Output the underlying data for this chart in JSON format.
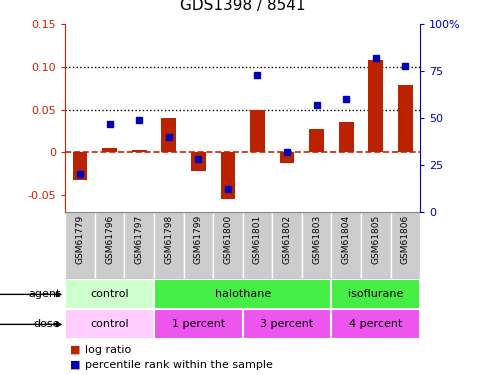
{
  "title": "GDS1398 / 8541",
  "samples": [
    "GSM61779",
    "GSM61796",
    "GSM61797",
    "GSM61798",
    "GSM61799",
    "GSM61800",
    "GSM61801",
    "GSM61802",
    "GSM61803",
    "GSM61804",
    "GSM61805",
    "GSM61806"
  ],
  "log_ratio": [
    -0.033,
    0.005,
    0.003,
    0.04,
    -0.022,
    -0.055,
    0.05,
    -0.013,
    0.027,
    0.035,
    0.108,
    0.079
  ],
  "pct_rank": [
    20,
    47,
    49,
    40,
    28,
    12,
    73,
    32,
    57,
    60,
    82,
    78
  ],
  "ylim_left": [
    -0.07,
    0.15
  ],
  "ylim_right": [
    0,
    100
  ],
  "yticks_left": [
    -0.05,
    0.0,
    0.05,
    0.1,
    0.15
  ],
  "ytick_labels_left": [
    "-0.05",
    "0",
    "0.05",
    "0.10",
    "0.15"
  ],
  "yticks_right": [
    0,
    25,
    50,
    75,
    100
  ],
  "ytick_labels_right": [
    "0",
    "25",
    "50",
    "75",
    "100%"
  ],
  "hlines": [
    0.1,
    0.05
  ],
  "bar_color": "#bb2200",
  "dot_color": "#0000bb",
  "zero_line_color": "#cc2200",
  "agent_groups": [
    {
      "label": "control",
      "start": 0,
      "end": 3
    },
    {
      "label": "halothane",
      "start": 3,
      "end": 9
    },
    {
      "label": "isoflurane",
      "start": 9,
      "end": 12
    }
  ],
  "agent_colors": {
    "control": "#ccffcc",
    "halothane": "#44ee44",
    "isoflurane": "#44ee44"
  },
  "dose_groups": [
    {
      "label": "control",
      "start": 0,
      "end": 3
    },
    {
      "label": "1 percent",
      "start": 3,
      "end": 6
    },
    {
      "label": "3 percent",
      "start": 6,
      "end": 9
    },
    {
      "label": "4 percent",
      "start": 9,
      "end": 12
    }
  ],
  "dose_colors": {
    "control": "#ffccff",
    "1 percent": "#ee55ee",
    "3 percent": "#ee55ee",
    "4 percent": "#ee55ee"
  },
  "legend_bar_label": "log ratio",
  "legend_dot_label": "percentile rank within the sample",
  "agent_label": "agent",
  "dose_label": "dose",
  "bg_color": "#ffffff",
  "tick_label_color_left": "#cc2200",
  "tick_label_color_right": "#0000cc",
  "sample_bg": "#cccccc",
  "sample_border": "#888888"
}
